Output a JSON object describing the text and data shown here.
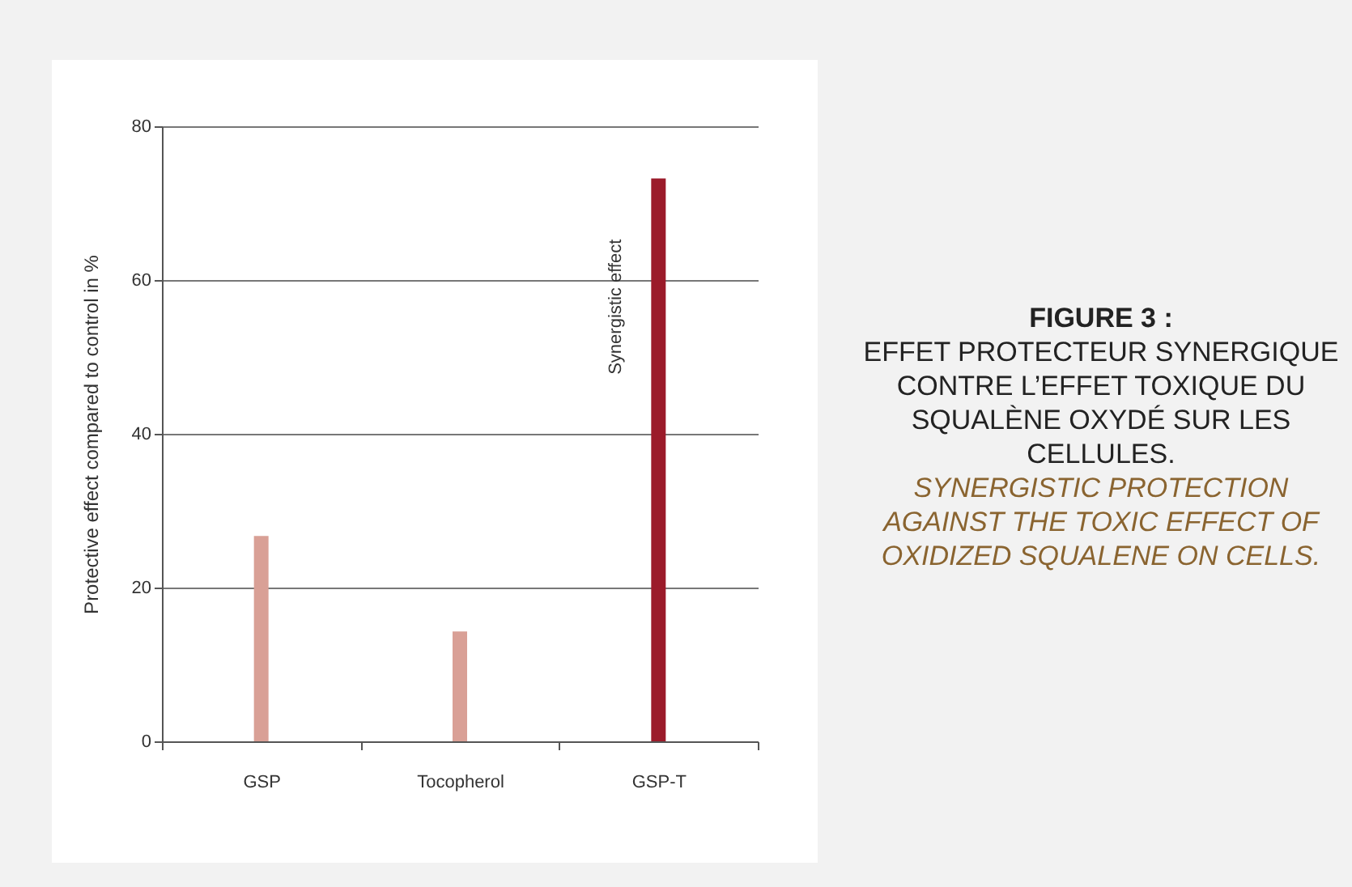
{
  "chart_data": {
    "type": "bar",
    "title": "FIGURE 3 :",
    "subtitle": "EFFET PROTECTEUR SYNERGIQUE CONTRE L’EFFET TOXIQUE DU SQUALÈNE OXYDÉ SUR LES CELLULES.",
    "ylabel": "Protective effect compared to control in %",
    "categories": [
      "GSP",
      "Tocopherol",
      "GSP-T"
    ],
    "values": [
      26.7,
      14.3,
      73.2
    ],
    "colors": [
      "#d9a096",
      "#d9a096",
      "#9b1b2a"
    ],
    "ylim": [
      0,
      80
    ],
    "yticks": [
      0,
      20,
      40,
      60,
      80
    ],
    "grid": "y",
    "annotations": [
      {
        "text": "Synergistic effect",
        "x": "GSP-T",
        "y": 56.5
      },
      "SYNERGISTIC PROTECTION AGAINST THE TOXIC EFFECT OF OXIDIZED SQUALENE ON CELLS."
    ]
  }
}
